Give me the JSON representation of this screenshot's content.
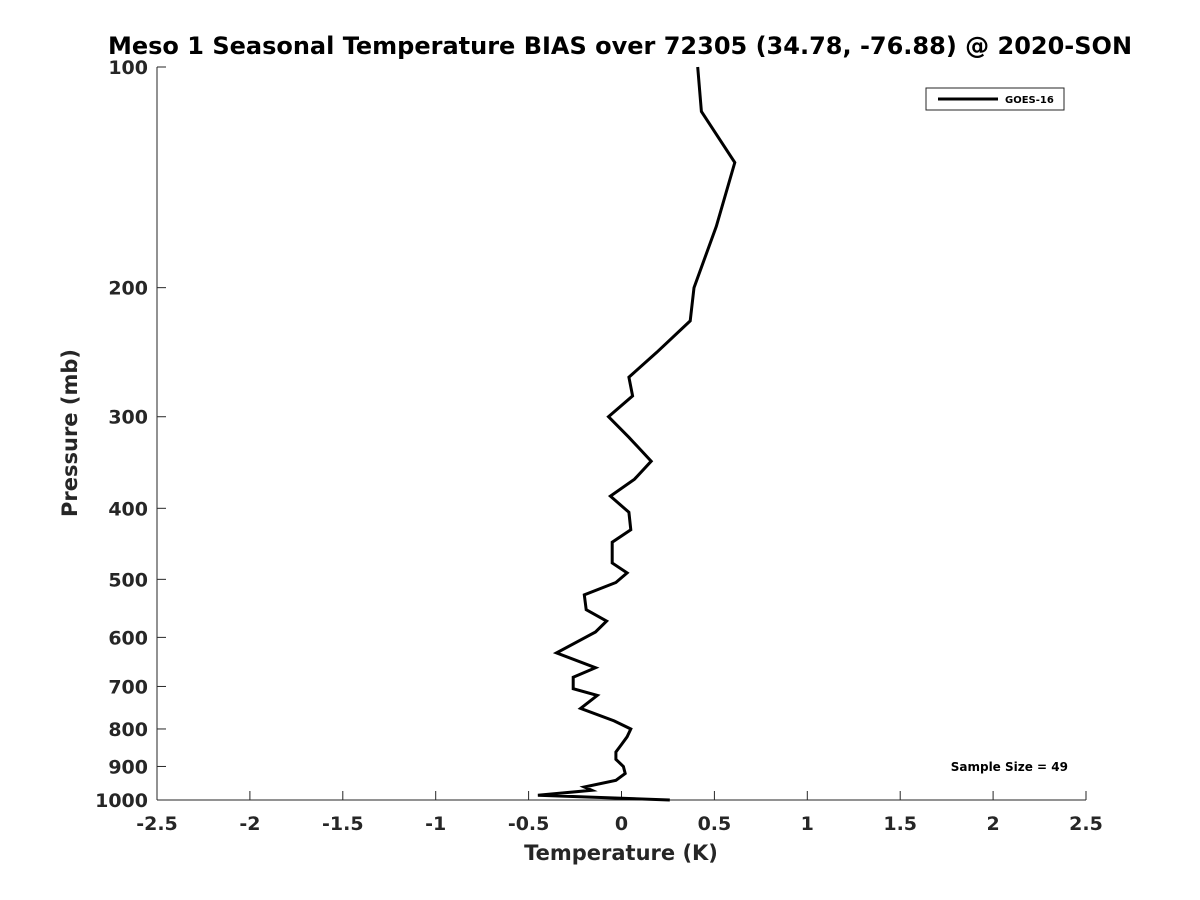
{
  "chart_data": {
    "type": "line",
    "title": "Meso 1 Seasonal Temperature BIAS over 72305 (34.78, -76.88) @ 2020-SON",
    "xlabel": "Temperature (K)",
    "ylabel": "Pressure (mb)",
    "xlim": [
      -2.5,
      2.5
    ],
    "ylim": [
      100,
      1000
    ],
    "y_scale": "log",
    "y_inverted": true,
    "x_ticks": [
      -2.5,
      -2,
      -1.5,
      -1,
      -0.5,
      0,
      0.5,
      1,
      1.5,
      2,
      2.5
    ],
    "x_tick_labels": [
      "-2.5",
      "-2",
      "-1.5",
      "-1",
      "-0.5",
      "0",
      "0.5",
      "1",
      "1.5",
      "2",
      "2.5"
    ],
    "y_ticks": [
      100,
      200,
      300,
      400,
      500,
      600,
      700,
      800,
      900,
      1000
    ],
    "y_tick_labels": [
      "100",
      "200",
      "300",
      "400",
      "500",
      "600",
      "700",
      "800",
      "900",
      "1000"
    ],
    "grid": false,
    "legend_position": "top-right",
    "series": [
      {
        "name": "GOES-16",
        "color": "#000000",
        "x": [
          0.41,
          0.43,
          0.61,
          0.51,
          0.39,
          0.37,
          0.19,
          0.04,
          0.06,
          -0.07,
          0.04,
          0.16,
          0.07,
          -0.06,
          0.04,
          0.05,
          -0.05,
          -0.05,
          0.03,
          -0.03,
          -0.2,
          -0.19,
          -0.08,
          -0.14,
          -0.35,
          -0.14,
          -0.26,
          -0.26,
          -0.13,
          -0.22,
          -0.04,
          0.05,
          0.03,
          0.0,
          -0.03,
          -0.03,
          0.01,
          0.02,
          -0.03,
          -0.2,
          -0.16,
          -0.45,
          0.26
        ],
        "y": [
          100,
          115,
          135,
          165,
          200,
          222,
          245,
          265,
          281,
          300,
          320,
          345,
          365,
          385,
          405,
          428,
          445,
          475,
          490,
          505,
          525,
          550,
          570,
          590,
          630,
          660,
          680,
          705,
          720,
          750,
          780,
          800,
          820,
          840,
          860,
          880,
          900,
          920,
          940,
          960,
          970,
          985,
          1000
        ]
      }
    ],
    "annotation": "Sample Size = 49"
  }
}
